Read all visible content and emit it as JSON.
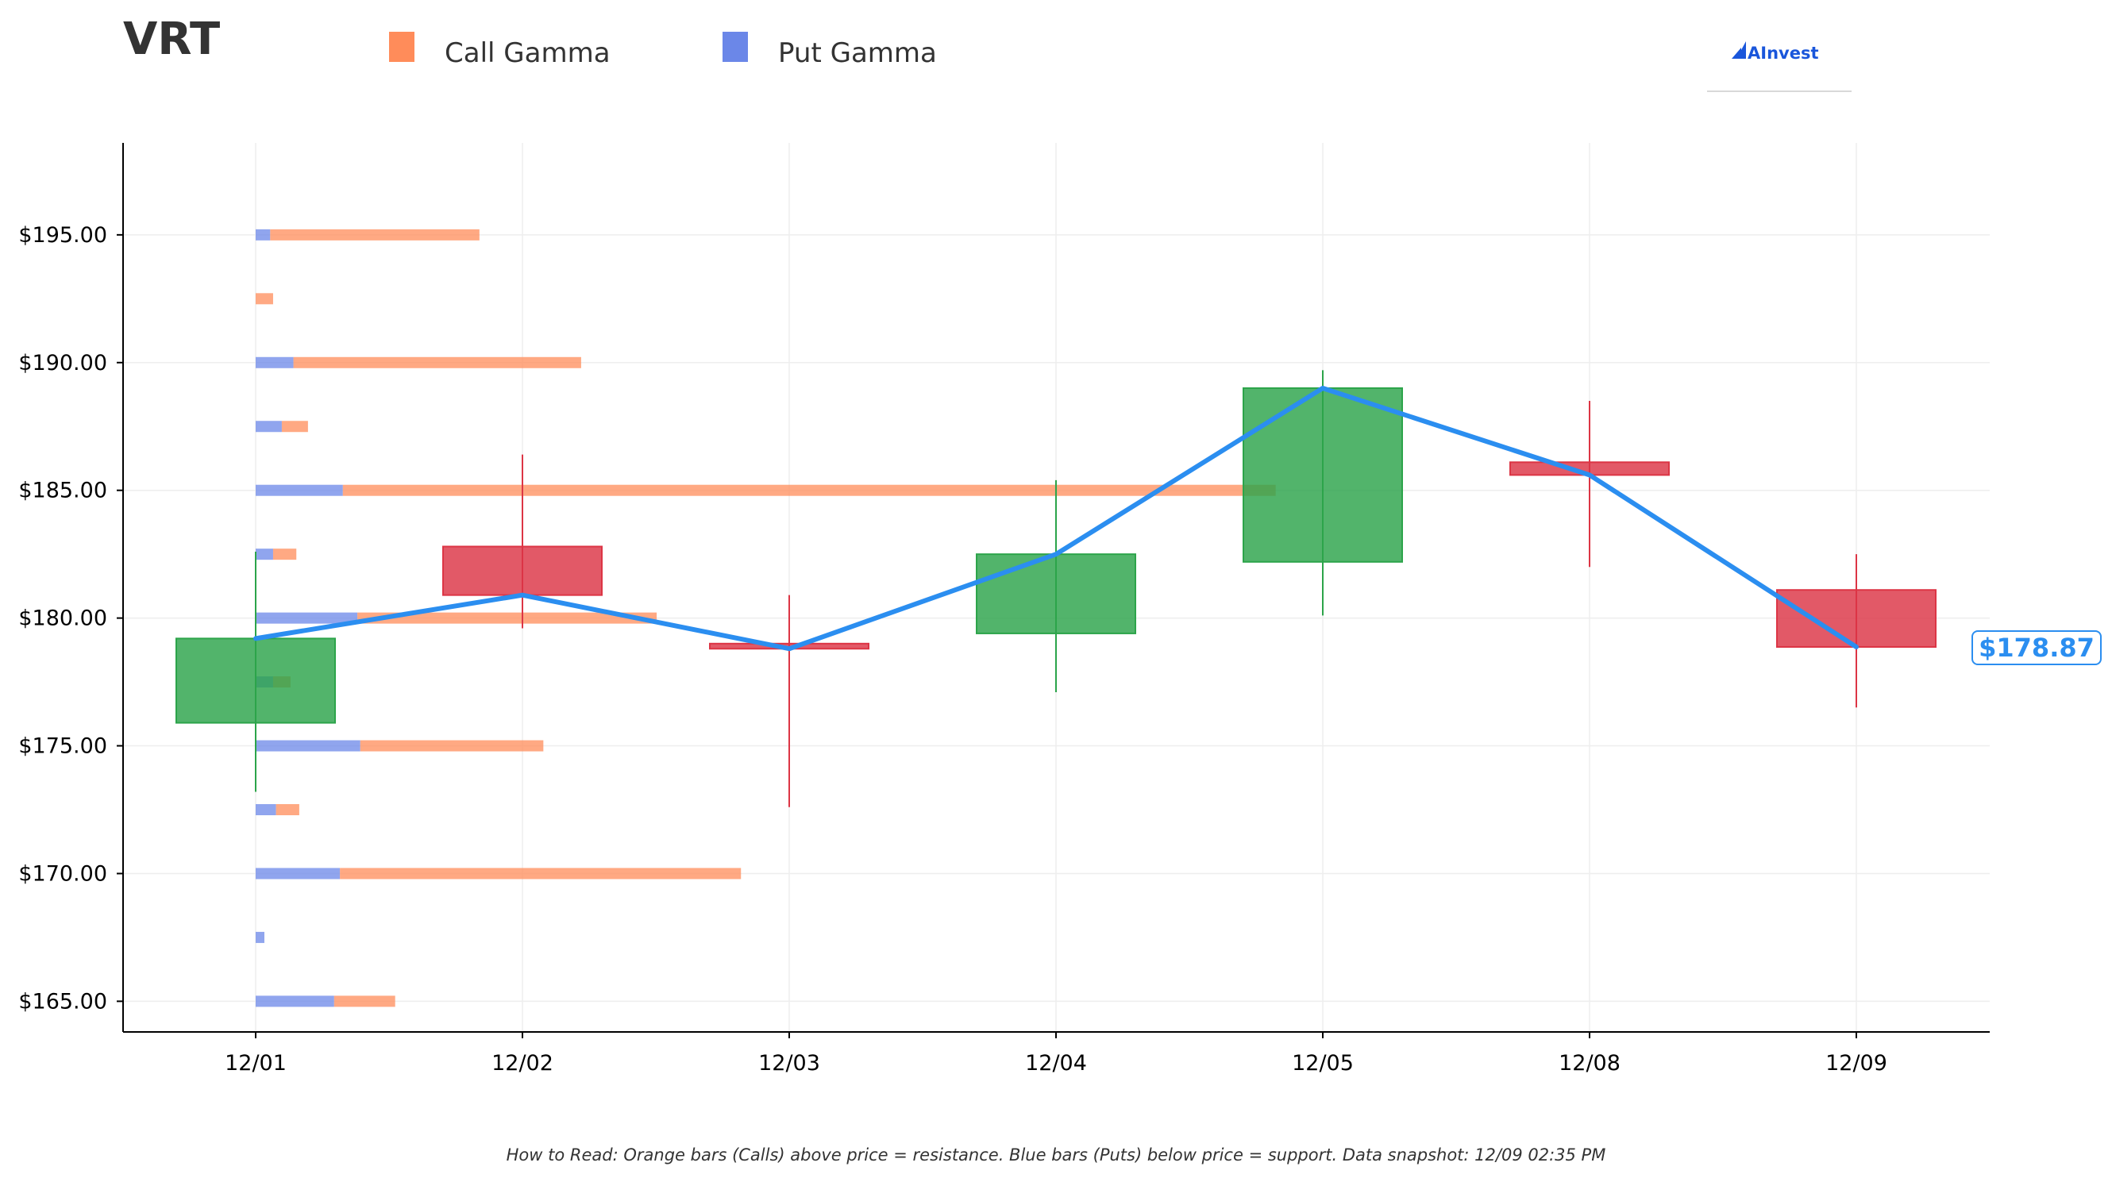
{
  "brand": {
    "name": "AInvest",
    "color": "#1a56db"
  },
  "chart_data": {
    "type": "candlestick",
    "title": "VRT",
    "legend": [
      {
        "name": "Call Gamma",
        "color": "#ff8c5a"
      },
      {
        "name": "Put Gamma",
        "color": "#6b87e8"
      }
    ],
    "legend_position": "top",
    "categories": [
      "12/01",
      "12/02",
      "12/03",
      "12/04",
      "12/05",
      "12/08",
      "12/09"
    ],
    "ohlc": [
      {
        "date": "12/01",
        "open": 175.9,
        "high": 182.6,
        "low": 173.2,
        "close": 179.2
      },
      {
        "date": "12/02",
        "open": 182.8,
        "high": 186.4,
        "low": 179.6,
        "close": 180.9
      },
      {
        "date": "12/03",
        "open": 179.0,
        "high": 180.9,
        "low": 172.6,
        "close": 178.8
      },
      {
        "date": "12/04",
        "open": 179.4,
        "high": 185.4,
        "low": 177.1,
        "close": 182.5
      },
      {
        "date": "12/05",
        "open": 182.2,
        "high": 189.7,
        "low": 180.1,
        "close": 189.0
      },
      {
        "date": "12/08",
        "open": 186.1,
        "high": 188.5,
        "low": 182.0,
        "close": 185.6
      },
      {
        "date": "12/09",
        "open": 181.1,
        "high": 182.5,
        "low": 176.5,
        "close": 178.87
      }
    ],
    "close_line": [
      179.2,
      180.9,
      178.8,
      182.5,
      189.0,
      185.6,
      178.87
    ],
    "gamma_levels": [
      {
        "strike": 195.0,
        "put": 0.5,
        "call": 7.2
      },
      {
        "strike": 192.5,
        "put": 0.0,
        "call": 0.6
      },
      {
        "strike": 190.0,
        "put": 1.3,
        "call": 9.9
      },
      {
        "strike": 187.5,
        "put": 0.9,
        "call": 0.9
      },
      {
        "strike": 185.0,
        "put": 3.0,
        "call": 32.1
      },
      {
        "strike": 182.5,
        "put": 0.6,
        "call": 0.8
      },
      {
        "strike": 180.0,
        "put": 3.5,
        "call": 10.3
      },
      {
        "strike": 177.5,
        "put": 0.6,
        "call": 0.6
      },
      {
        "strike": 175.0,
        "put": 3.6,
        "call": 6.3
      },
      {
        "strike": 172.5,
        "put": 0.7,
        "call": 0.8
      },
      {
        "strike": 170.0,
        "put": 2.9,
        "call": 13.8
      },
      {
        "strike": 167.5,
        "put": 0.3,
        "call": 0.0
      },
      {
        "strike": 165.0,
        "put": 2.7,
        "call": 2.1
      }
    ],
    "y_ticks": [
      165,
      170,
      175,
      180,
      185,
      190,
      195
    ],
    "y_tick_labels": [
      "$165.00",
      "$170.00",
      "$175.00",
      "$180.00",
      "$185.00",
      "$190.00",
      "$195.00"
    ],
    "ylim": [
      163.8,
      198.6
    ],
    "last_price_label": "$178.87",
    "colors": {
      "up": "#2ca44a",
      "down": "#dc3545",
      "line": "#2b8ef0",
      "call": "#ff8c5a",
      "put": "#6b87e8"
    },
    "grid": true
  },
  "footnote": "How to Read: Orange bars (Calls) above price = resistance. Blue bars (Puts) below price = support. Data snapshot: 12/09 02:35 PM"
}
